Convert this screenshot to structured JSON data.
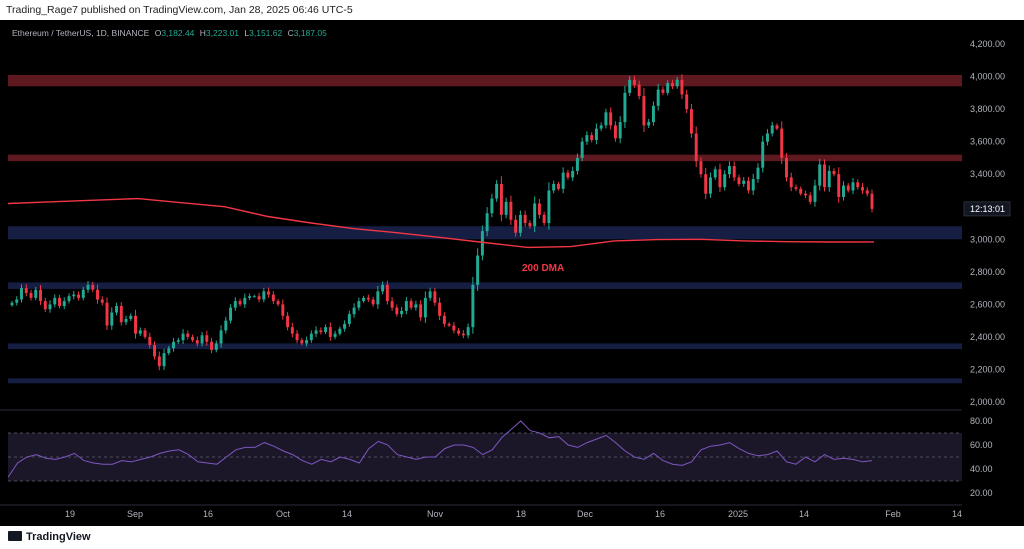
{
  "header": {
    "published_text": "Trading_Rage7 published on TradingView.com, Jan 28, 2025 06:46 UTC-5"
  },
  "symbol": {
    "name": "Ethereum / TetherUS, 1D, BINANCE",
    "o_label": "O",
    "o_value": "3,182.44",
    "h_label": "H",
    "h_value": "3,223.01",
    "l_label": "L",
    "l_value": "3,151.62",
    "c_label": "C",
    "c_value": "3,187.05"
  },
  "footer": {
    "brand": "TradingView"
  },
  "colors": {
    "up": "#22ab94",
    "down": "#f23645",
    "dma": "#f23645",
    "rsi": "#7e57c2",
    "zone_red": "#6e1c26",
    "zone_blue": "#1a2350"
  },
  "chart_data": {
    "type": "candlestick",
    "symbol": "Ethereum / TetherUS",
    "timeframe": "1D",
    "exchange": "BINANCE",
    "price_axis_ticks": [
      "4,200.00",
      "4,000.00",
      "3,800.00",
      "3,600.00",
      "3,400.00",
      "3,200.00",
      "3,000.00",
      "2,800.00",
      "2,600.00",
      "2,400.00",
      "2,200.00",
      "2,000.00"
    ],
    "price_axis_values": [
      4200,
      4000,
      3800,
      3600,
      3400,
      3200,
      3000,
      2800,
      2600,
      2400,
      2200,
      2000
    ],
    "ylim": [
      1960,
      4260
    ],
    "current_price_tag": "12:13:01",
    "rsi_axis_ticks": [
      "80.00",
      "60.00",
      "40.00",
      "20.00"
    ],
    "rsi_axis_values": [
      80,
      60,
      40,
      20
    ],
    "rsi_ylim": [
      15,
      87
    ],
    "date_labels": [
      "19",
      "Sep",
      "16",
      "Oct",
      "14",
      "Nov",
      "18",
      "Dec",
      "16",
      "2025",
      "14",
      "Feb",
      "14"
    ],
    "annotations": [
      {
        "text": "200 DMA"
      }
    ],
    "zones": [
      {
        "kind": "resistance",
        "color": "red",
        "from": 3940,
        "to": 4010
      },
      {
        "kind": "resistance",
        "color": "red",
        "from": 3480,
        "to": 3520
      },
      {
        "kind": "support",
        "color": "blue",
        "from": 3000,
        "to": 3080
      },
      {
        "kind": "support",
        "color": "blue",
        "from": 2695,
        "to": 2735
      },
      {
        "kind": "support",
        "color": "blue",
        "from": 2325,
        "to": 2360
      },
      {
        "kind": "support",
        "color": "blue",
        "from": 2115,
        "to": 2145
      }
    ],
    "closes": [
      2610,
      2630,
      2700,
      2670,
      2640,
      2690,
      2620,
      2570,
      2600,
      2640,
      2590,
      2620,
      2650,
      2660,
      2640,
      2690,
      2720,
      2690,
      2630,
      2610,
      2470,
      2550,
      2590,
      2490,
      2510,
      2530,
      2420,
      2440,
      2400,
      2350,
      2280,
      2220,
      2300,
      2330,
      2370,
      2380,
      2420,
      2400,
      2380,
      2360,
      2410,
      2370,
      2320,
      2360,
      2440,
      2500,
      2580,
      2620,
      2600,
      2640,
      2650,
      2650,
      2630,
      2680,
      2660,
      2620,
      2600,
      2530,
      2460,
      2420,
      2380,
      2360,
      2380,
      2420,
      2440,
      2430,
      2460,
      2400,
      2420,
      2450,
      2480,
      2540,
      2580,
      2620,
      2640,
      2630,
      2600,
      2680,
      2720,
      2620,
      2580,
      2540,
      2560,
      2620,
      2580,
      2600,
      2520,
      2640,
      2680,
      2610,
      2530,
      2480,
      2470,
      2440,
      2420,
      2410,
      2460,
      2720,
      2900,
      3050,
      3160,
      3250,
      3340,
      3150,
      3230,
      3120,
      3040,
      3150,
      3100,
      3080,
      3220,
      3150,
      3100,
      3300,
      3340,
      3310,
      3410,
      3380,
      3420,
      3500,
      3600,
      3640,
      3610,
      3680,
      3700,
      3780,
      3700,
      3620,
      3720,
      3900,
      3980,
      3950,
      3880,
      3700,
      3720,
      3820,
      3920,
      3900,
      3960,
      3940,
      3980,
      3890,
      3800,
      3650,
      3480,
      3400,
      3280,
      3380,
      3430,
      3320,
      3400,
      3450,
      3380,
      3340,
      3360,
      3300,
      3370,
      3440,
      3600,
      3650,
      3700,
      3680,
      3500,
      3380,
      3320,
      3310,
      3280,
      3270,
      3230,
      3330,
      3460,
      3320,
      3420,
      3400,
      3260,
      3330,
      3300,
      3350,
      3320,
      3300,
      3280,
      3187
    ],
    "dma200": [
      3220,
      3230,
      3240,
      3250,
      3225,
      3200,
      3140,
      3100,
      3065,
      3040,
      3010,
      2980,
      2950,
      2955,
      2990,
      2998,
      3000,
      2990,
      2985,
      2983,
      2984
    ],
    "rsi": [
      33,
      45,
      50,
      52,
      49,
      48,
      50,
      53,
      47,
      45,
      44,
      44,
      47,
      46,
      48,
      50,
      53,
      55,
      56,
      52,
      46,
      45,
      44,
      50,
      56,
      58,
      58,
      62,
      59,
      55,
      52,
      47,
      44,
      48,
      46,
      50,
      48,
      45,
      57,
      63,
      60,
      52,
      50,
      48,
      50,
      50,
      57,
      60,
      60,
      58,
      52,
      56,
      66,
      73,
      80,
      72,
      70,
      66,
      67,
      60,
      58,
      62,
      65,
      68,
      62,
      55,
      50,
      48,
      53,
      47,
      44,
      43,
      46,
      56,
      59,
      60,
      62,
      57,
      53,
      51,
      52,
      55,
      46,
      44,
      50,
      46,
      52,
      48,
      49,
      48,
      46,
      47
    ]
  }
}
